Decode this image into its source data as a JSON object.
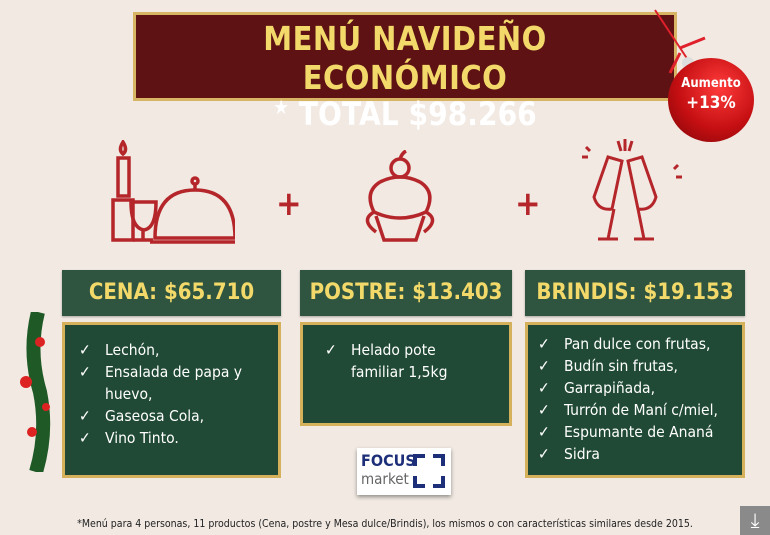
{
  "header": {
    "title": "MENÚ NAVIDEÑO ECONÓMICO",
    "total": "TOTAL $98.266",
    "star": "★"
  },
  "badge": {
    "label": "Aumento",
    "value": "+13%"
  },
  "icons": [
    "dinner-icon",
    "cupcake-icon",
    "champagne-toast-icon"
  ],
  "plus": "+",
  "sections": [
    {
      "title": "CENA: $65.710",
      "items": [
        "Lechón,",
        "Ensalada de papa y huevo,",
        "Gaseosa Cola,",
        "Vino Tinto."
      ]
    },
    {
      "title": "POSTRE: $13.403",
      "items": [
        "Helado pote familiar 1,5kg"
      ]
    },
    {
      "title": "BRINDIS: $19.153",
      "items": [
        "Pan dulce con frutas,",
        "Budín sin frutas,",
        "Garrapiñada,",
        "Turrón de Maní c/miel,",
        "Espumante de Ananá",
        "Sidra"
      ]
    }
  ],
  "check": "✓",
  "logo": {
    "line1": "FOCUS",
    "line2": "market"
  },
  "footnote": "*Menú para 4 personas, 11 productos (Cena, postre y Mesa dulce/Brindis), los mismos o con características similares desde 2015.",
  "colors": {
    "maroon": "#5e1214",
    "gold": "#d4b15a",
    "green": "#204a35",
    "red": "#b5262b"
  }
}
